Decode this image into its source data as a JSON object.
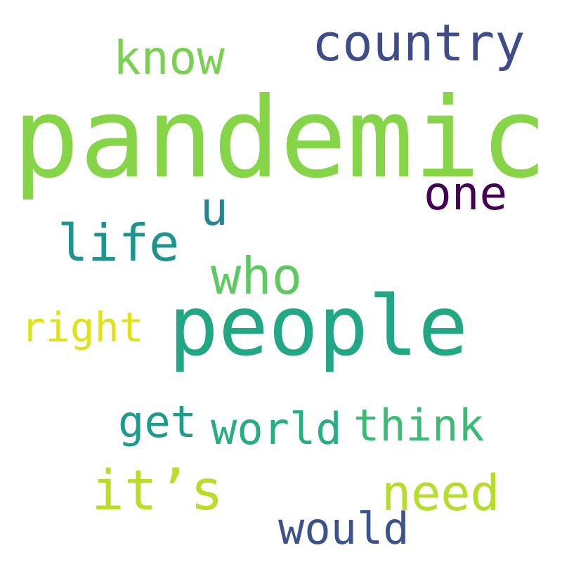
{
  "words": [
    {
      "id": "pandemic",
      "text": "pandemic",
      "color": "#86d549"
    },
    {
      "id": "people",
      "text": "people",
      "color": "#22a785"
    },
    {
      "id": "country",
      "text": "country",
      "color": "#3e4c8a"
    },
    {
      "id": "know",
      "text": "know",
      "color": "#7ad151"
    },
    {
      "id": "one",
      "text": "one",
      "color": "#440154"
    },
    {
      "id": "u",
      "text": "u",
      "color": "#25858e"
    },
    {
      "id": "life",
      "text": "life",
      "color": "#1f948c"
    },
    {
      "id": "who",
      "text": "who",
      "color": "#5ec962"
    },
    {
      "id": "right",
      "text": "right",
      "color": "#dde318"
    },
    {
      "id": "get",
      "text": "get",
      "color": "#1e9b8a"
    },
    {
      "id": "world",
      "text": "world",
      "color": "#26ad81"
    },
    {
      "id": "think",
      "text": "think",
      "color": "#3bbb75"
    },
    {
      "id": "its",
      "text": "it’s",
      "color": "#bade28"
    },
    {
      "id": "need",
      "text": "need",
      "color": "#b5de2b"
    },
    {
      "id": "would",
      "text": "would",
      "color": "#3b528b"
    }
  ]
}
